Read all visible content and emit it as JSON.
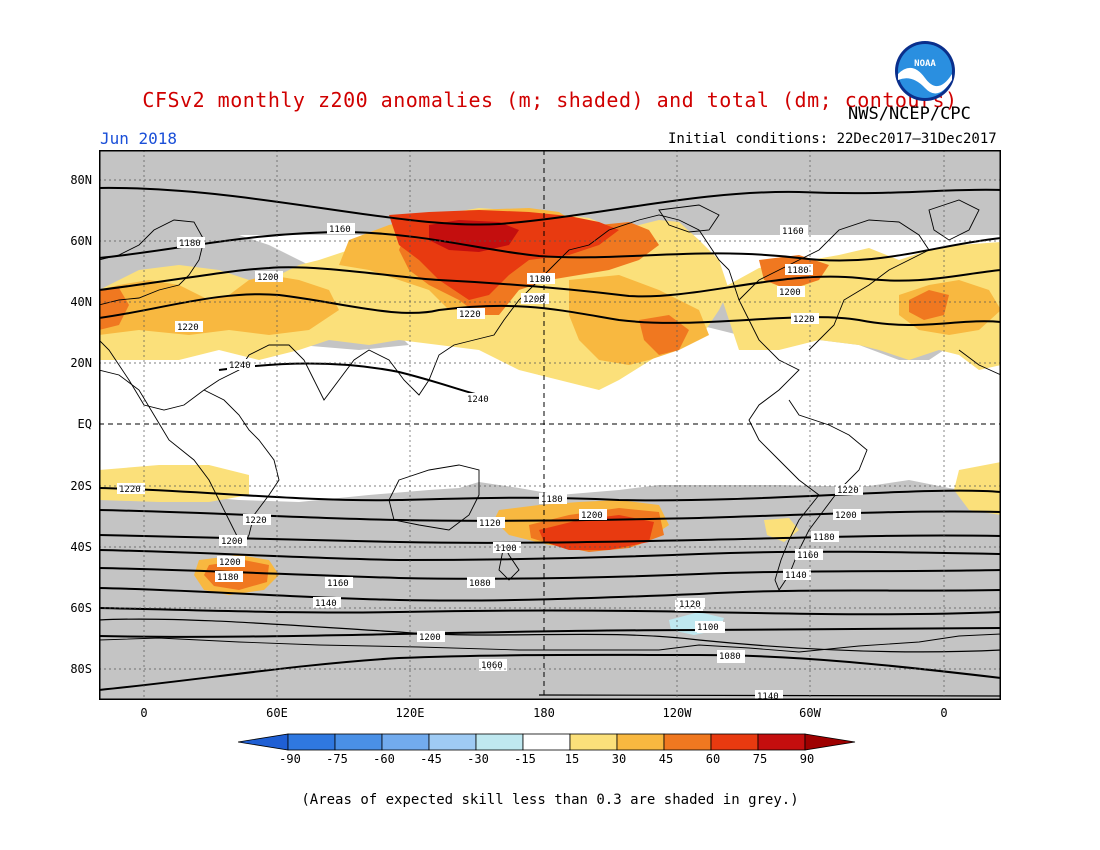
{
  "title": "CFSv2 monthly z200 anomalies (m; shaded) and total (dm; contours)",
  "month": "Jun 2018",
  "agency": "NWS/NCEP/CPC",
  "logo_text": "NOAA",
  "initial_conditions": "Initial conditions: 22Dec2017–31Dec2017",
  "lat_labels": [
    "80N",
    "60N",
    "40N",
    "20N",
    "EQ",
    "20S",
    "40S",
    "60S",
    "80S"
  ],
  "lon_labels": [
    "0",
    "60E",
    "120E",
    "180",
    "120W",
    "60W",
    "0"
  ],
  "contour_labels": [
    "1160",
    "1180",
    "1200",
    "1220",
    "1240",
    "1240",
    "1220",
    "1180",
    "1200",
    "1220",
    "1180",
    "1200",
    "1220",
    "1160",
    "1180",
    "1200",
    "1220",
    "1200",
    "1200",
    "1180",
    "1160",
    "1140",
    "1120",
    "1100",
    "1080",
    "1060",
    "1220",
    "1200",
    "1180",
    "1180",
    "1140",
    "1220",
    "1200",
    "1180",
    "1160",
    "1140",
    "1120",
    "1100",
    "1080",
    "1060"
  ],
  "colorbar": {
    "labels": [
      "-90",
      "-75",
      "-60",
      "-45",
      "-30",
      "-15",
      "15",
      "30",
      "45",
      "60",
      "75",
      "90"
    ],
    "colors": [
      "#1f5fd4",
      "#2f78e0",
      "#4a90e6",
      "#72abee",
      "#9fcbf4",
      "#bfe8f0",
      "#ffffff",
      "#fbe07a",
      "#f8b840",
      "#f07820",
      "#e83a10",
      "#c40e0e",
      "#9e0000"
    ]
  },
  "note": "(Areas of expected skill less than 0.3 are shaded in grey.)",
  "map_colors": {
    "skill_grey": "#c4c4c4",
    "anom_30": "#fbe07a",
    "anom_45": "#f8b840",
    "anom_60": "#f07820",
    "anom_75": "#e83a10",
    "anom_neg": "#bfe8f0"
  }
}
